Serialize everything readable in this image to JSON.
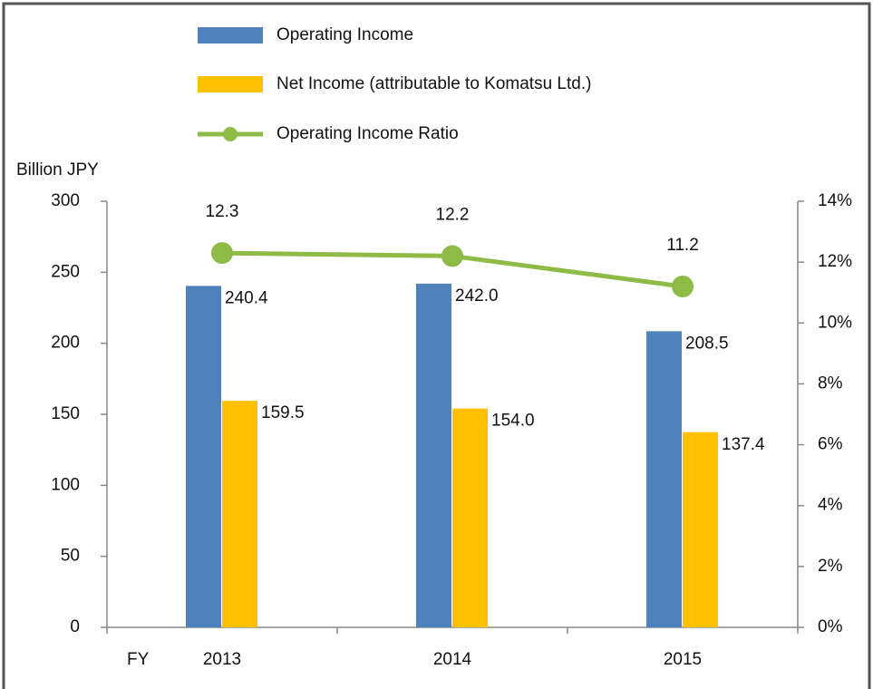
{
  "chart_data": {
    "type": "bar",
    "categories": [
      "2013",
      "2014",
      "2015"
    ],
    "x_label": "FY",
    "y_label": "Billion JPY",
    "series": [
      {
        "name": "Operating Income",
        "color": "#4f81bd",
        "values": [
          240.4,
          242.0,
          208.5
        ],
        "value_labels": [
          "240.4",
          "242.0",
          "208.5"
        ]
      },
      {
        "name": "Net Income (attributable to Komatsu Ltd.)",
        "color": "#ffc000",
        "values": [
          159.5,
          154.0,
          137.4
        ],
        "value_labels": [
          "159.5",
          "154.0",
          "137.4"
        ]
      },
      {
        "name": "Operating Income Ratio",
        "type": "line",
        "axis": "y2",
        "color": "#8dbb46",
        "values": [
          12.3,
          12.2,
          11.2
        ]
      }
    ],
    "ylim": [
      0,
      300
    ],
    "yticks": [
      0,
      50,
      100,
      150,
      200,
      250,
      300
    ],
    "y2lim": [
      0,
      14
    ],
    "y2ticks": [
      {
        "value": 0,
        "label": "0%"
      },
      {
        "value": 2,
        "label": "2%"
      },
      {
        "value": 4,
        "label": "4%"
      },
      {
        "value": 6,
        "label": "6%"
      },
      {
        "value": 8,
        "label": "8%"
      },
      {
        "value": 10,
        "label": "10%"
      },
      {
        "value": 12,
        "label": "12%"
      },
      {
        "value": 14,
        "label": "14%"
      }
    ],
    "grid": false
  }
}
